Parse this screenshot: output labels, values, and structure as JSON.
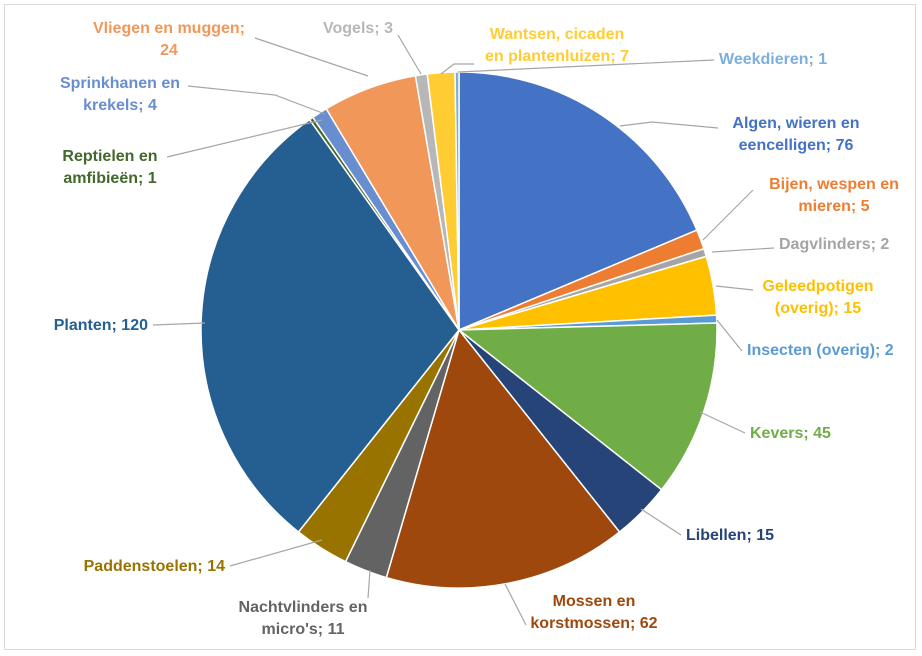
{
  "chart_data": {
    "type": "pie",
    "title": "",
    "label_separator": "; ",
    "slices": [
      {
        "name": "Algen, wieren en eencelligen",
        "value": 76,
        "color": "#4472C4"
      },
      {
        "name": "Bijen, wespen en mieren",
        "value": 5,
        "color": "#ED7D31"
      },
      {
        "name": "Dagvlinders",
        "value": 2,
        "color": "#A5A5A5"
      },
      {
        "name": "Geleedpotigen (overig)",
        "value": 15,
        "color": "#FFC000"
      },
      {
        "name": "Insecten (overig)",
        "value": 2,
        "color": "#5B9BD5"
      },
      {
        "name": "Kevers",
        "value": 45,
        "color": "#70AD47"
      },
      {
        "name": "Libellen",
        "value": 15,
        "color": "#264478"
      },
      {
        "name": "Mossen en korstmossen",
        "value": 62,
        "color": "#9E480E"
      },
      {
        "name": "Nachtvlinders en micro's",
        "value": 11,
        "color": "#636363"
      },
      {
        "name": "Paddenstoelen",
        "value": 14,
        "color": "#997300"
      },
      {
        "name": "Planten",
        "value": 120,
        "color": "#255E91"
      },
      {
        "name": "Reptielen en amfibieën",
        "value": 1,
        "color": "#43682B"
      },
      {
        "name": "Sprinkhanen en krekels",
        "value": 4,
        "color": "#698ED0"
      },
      {
        "name": "Vliegen en muggen",
        "value": 24,
        "color": "#F1975A"
      },
      {
        "name": "Vogels",
        "value": 3,
        "color": "#B7B7B7"
      },
      {
        "name": "Wantsen, cicaden en plantenluizen",
        "value": 7,
        "color": "#FFCD33"
      },
      {
        "name": "Weekdieren",
        "value": 1,
        "color": "#7CAFDD"
      }
    ]
  }
}
